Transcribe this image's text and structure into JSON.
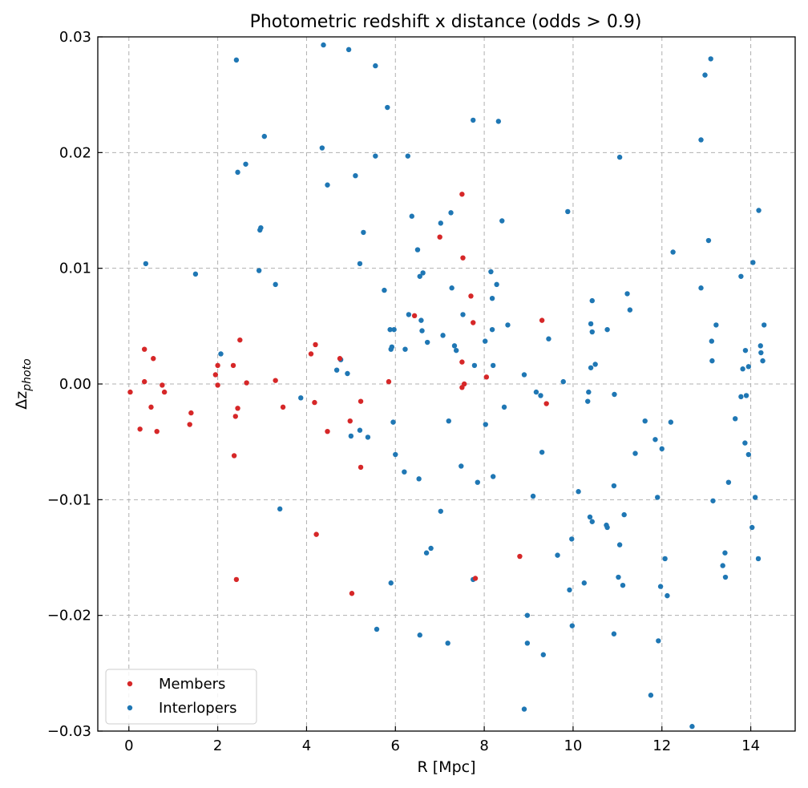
{
  "chart_data": {
    "type": "scatter",
    "title": "Photometric redshift x distance (odds > 0.9)",
    "xlabel": "R [Mpc]",
    "ylabel_base": "Δz",
    "ylabel_sub": "photo",
    "xlim": [
      -0.7,
      15.0
    ],
    "ylim": [
      -0.03,
      0.03
    ],
    "xticks": [
      0,
      2,
      4,
      6,
      8,
      10,
      12,
      14
    ],
    "yticks": [
      -0.03,
      -0.02,
      -0.01,
      0.0,
      0.01,
      0.02,
      0.03
    ],
    "ytick_labels": [
      "−0.03",
      "−0.02",
      "−0.01",
      "0.00",
      "0.01",
      "0.02",
      "0.03"
    ],
    "grid": true,
    "legend_position": "lower-left",
    "series": [
      {
        "name": "Members",
        "color": "#d62728",
        "points": [
          [
            0.03,
            -0.0007
          ],
          [
            0.25,
            -0.0039
          ],
          [
            0.35,
            0.003
          ],
          [
            0.35,
            0.0002
          ],
          [
            0.5,
            -0.002
          ],
          [
            0.55,
            0.0022
          ],
          [
            0.63,
            -0.0041
          ],
          [
            0.75,
            -0.0001
          ],
          [
            0.8,
            -0.0007
          ],
          [
            1.37,
            -0.0035
          ],
          [
            1.4,
            -0.0025
          ],
          [
            1.95,
            0.0008
          ],
          [
            2.0,
            0.0016
          ],
          [
            2.0,
            -0.0001
          ],
          [
            2.35,
            0.0016
          ],
          [
            2.37,
            -0.0062
          ],
          [
            2.4,
            -0.0028
          ],
          [
            2.45,
            -0.0021
          ],
          [
            2.5,
            0.0038
          ],
          [
            2.65,
            0.0001
          ],
          [
            2.42,
            -0.0169
          ],
          [
            3.3,
            0.0003
          ],
          [
            3.47,
            -0.002
          ],
          [
            4.1,
            0.0026
          ],
          [
            4.2,
            0.0034
          ],
          [
            4.18,
            -0.0016
          ],
          [
            4.22,
            -0.013
          ],
          [
            4.47,
            -0.0041
          ],
          [
            4.75,
            0.0022
          ],
          [
            4.98,
            -0.0032
          ],
          [
            5.02,
            -0.0181
          ],
          [
            5.22,
            -0.0015
          ],
          [
            5.22,
            -0.0072
          ],
          [
            5.85,
            0.0002
          ],
          [
            6.43,
            0.0059
          ],
          [
            7.0,
            0.0127
          ],
          [
            7.5,
            0.0164
          ],
          [
            7.5,
            0.0019
          ],
          [
            7.5,
            -0.0003
          ],
          [
            7.52,
            0.0109
          ],
          [
            7.55,
            0.0
          ],
          [
            7.7,
            0.0076
          ],
          [
            7.75,
            0.0053
          ],
          [
            7.8,
            -0.0168
          ],
          [
            8.05,
            0.0006
          ],
          [
            8.8,
            -0.0149
          ],
          [
            9.3,
            0.0055
          ],
          [
            9.4,
            -0.0017
          ]
        ]
      },
      {
        "name": "Interlopers",
        "color": "#1f77b4",
        "points": [
          [
            0.38,
            0.0104
          ],
          [
            1.5,
            0.0095
          ],
          [
            2.07,
            0.0026
          ],
          [
            2.42,
            0.028
          ],
          [
            2.45,
            0.0183
          ],
          [
            2.63,
            0.019
          ],
          [
            2.93,
            0.0098
          ],
          [
            2.95,
            0.0133
          ],
          [
            2.97,
            0.0135
          ],
          [
            3.05,
            0.0214
          ],
          [
            3.3,
            0.0086
          ],
          [
            3.4,
            -0.0108
          ],
          [
            3.87,
            -0.0012
          ],
          [
            4.35,
            0.0204
          ],
          [
            4.38,
            0.0293
          ],
          [
            4.47,
            0.0172
          ],
          [
            4.68,
            0.0012
          ],
          [
            4.77,
            0.0021
          ],
          [
            4.92,
            0.0009
          ],
          [
            4.95,
            0.0289
          ],
          [
            5.0,
            -0.0045
          ],
          [
            5.1,
            0.018
          ],
          [
            5.2,
            0.0104
          ],
          [
            5.2,
            -0.004
          ],
          [
            5.28,
            0.0131
          ],
          [
            5.38,
            -0.0046
          ],
          [
            5.55,
            0.0197
          ],
          [
            5.55,
            0.0275
          ],
          [
            5.58,
            -0.0212
          ],
          [
            5.75,
            0.0081
          ],
          [
            5.82,
            0.0239
          ],
          [
            5.88,
            0.0047
          ],
          [
            5.9,
            0.003
          ],
          [
            5.9,
            -0.0172
          ],
          [
            5.92,
            0.0032
          ],
          [
            5.95,
            -0.0033
          ],
          [
            5.97,
            0.0047
          ],
          [
            6.0,
            -0.0061
          ],
          [
            6.2,
            -0.0076
          ],
          [
            6.22,
            0.003
          ],
          [
            6.28,
            0.0197
          ],
          [
            6.3,
            0.006
          ],
          [
            6.37,
            0.0145
          ],
          [
            6.5,
            0.0116
          ],
          [
            6.53,
            -0.0082
          ],
          [
            6.55,
            0.0093
          ],
          [
            6.55,
            -0.0217
          ],
          [
            6.58,
            0.0055
          ],
          [
            6.6,
            0.0046
          ],
          [
            6.62,
            0.0096
          ],
          [
            6.7,
            -0.0146
          ],
          [
            6.72,
            0.0036
          ],
          [
            6.8,
            -0.0142
          ],
          [
            7.02,
            0.0139
          ],
          [
            7.02,
            -0.011
          ],
          [
            7.07,
            0.0042
          ],
          [
            7.18,
            -0.0224
          ],
          [
            7.2,
            -0.0032
          ],
          [
            7.25,
            0.0148
          ],
          [
            7.27,
            0.0083
          ],
          [
            7.33,
            0.0033
          ],
          [
            7.37,
            0.0029
          ],
          [
            7.48,
            -0.0071
          ],
          [
            7.52,
            0.006
          ],
          [
            7.75,
            0.0228
          ],
          [
            7.75,
            -0.0169
          ],
          [
            7.78,
            0.0016
          ],
          [
            7.85,
            -0.0085
          ],
          [
            8.02,
            0.0037
          ],
          [
            8.03,
            -0.0035
          ],
          [
            8.15,
            0.0097
          ],
          [
            8.18,
            0.0074
          ],
          [
            8.18,
            0.0047
          ],
          [
            8.2,
            0.0016
          ],
          [
            8.2,
            -0.008
          ],
          [
            8.28,
            0.0086
          ],
          [
            8.32,
            0.0227
          ],
          [
            8.4,
            0.0141
          ],
          [
            8.45,
            -0.002
          ],
          [
            8.53,
            0.0051
          ],
          [
            8.9,
            0.0008
          ],
          [
            8.9,
            -0.0281
          ],
          [
            8.97,
            -0.02
          ],
          [
            8.97,
            -0.0224
          ],
          [
            9.1,
            -0.0097
          ],
          [
            9.17,
            -0.0007
          ],
          [
            9.27,
            -0.001
          ],
          [
            9.3,
            -0.0059
          ],
          [
            9.33,
            -0.0234
          ],
          [
            9.45,
            0.0039
          ],
          [
            9.65,
            -0.0148
          ],
          [
            9.78,
            0.0002
          ],
          [
            9.88,
            0.0149
          ],
          [
            9.92,
            -0.0178
          ],
          [
            9.97,
            -0.0134
          ],
          [
            9.98,
            -0.0209
          ],
          [
            10.12,
            -0.0093
          ],
          [
            10.25,
            -0.0172
          ],
          [
            10.33,
            -0.0015
          ],
          [
            10.35,
            -0.0007
          ],
          [
            10.38,
            -0.0115
          ],
          [
            10.4,
            0.0014
          ],
          [
            10.4,
            0.0052
          ],
          [
            10.43,
            0.0045
          ],
          [
            10.43,
            0.0072
          ],
          [
            10.43,
            -0.0119
          ],
          [
            10.5,
            0.0017
          ],
          [
            10.75,
            -0.0122
          ],
          [
            10.77,
            -0.0124
          ],
          [
            10.77,
            0.0047
          ],
          [
            10.92,
            -0.0216
          ],
          [
            10.92,
            -0.0088
          ],
          [
            10.93,
            -0.0009
          ],
          [
            11.02,
            -0.0167
          ],
          [
            11.05,
            0.0196
          ],
          [
            11.05,
            -0.0139
          ],
          [
            11.12,
            -0.0174
          ],
          [
            11.15,
            -0.0113
          ],
          [
            11.22,
            0.0078
          ],
          [
            11.28,
            0.0064
          ],
          [
            11.4,
            -0.006
          ],
          [
            11.62,
            -0.0032
          ],
          [
            11.75,
            -0.0269
          ],
          [
            11.85,
            -0.0048
          ],
          [
            11.9,
            -0.0098
          ],
          [
            11.92,
            -0.0222
          ],
          [
            11.97,
            -0.0175
          ],
          [
            12.0,
            -0.0056
          ],
          [
            12.07,
            -0.0151
          ],
          [
            12.12,
            -0.0183
          ],
          [
            12.2,
            -0.0033
          ],
          [
            12.25,
            0.0114
          ],
          [
            12.68,
            -0.0296
          ],
          [
            12.88,
            0.0211
          ],
          [
            12.88,
            0.0083
          ],
          [
            12.97,
            0.0267
          ],
          [
            13.05,
            0.0124
          ],
          [
            13.1,
            0.0281
          ],
          [
            13.12,
            0.0037
          ],
          [
            13.13,
            0.002
          ],
          [
            13.15,
            -0.0101
          ],
          [
            13.22,
            0.0051
          ],
          [
            13.37,
            -0.0157
          ],
          [
            13.42,
            -0.0146
          ],
          [
            13.43,
            -0.0167
          ],
          [
            13.5,
            -0.0085
          ],
          [
            13.65,
            -0.003
          ],
          [
            13.78,
            0.0093
          ],
          [
            13.78,
            -0.0011
          ],
          [
            13.82,
            0.0013
          ],
          [
            13.87,
            -0.0051
          ],
          [
            13.88,
            0.0029
          ],
          [
            13.9,
            -0.001
          ],
          [
            13.95,
            0.0015
          ],
          [
            13.95,
            -0.0061
          ],
          [
            14.03,
            -0.0124
          ],
          [
            14.05,
            0.0105
          ],
          [
            14.1,
            -0.0098
          ],
          [
            14.17,
            -0.0151
          ],
          [
            14.18,
            0.015
          ],
          [
            14.22,
            0.0033
          ],
          [
            14.23,
            0.0027
          ],
          [
            14.27,
            0.002
          ],
          [
            14.3,
            0.0051
          ]
        ]
      }
    ]
  }
}
